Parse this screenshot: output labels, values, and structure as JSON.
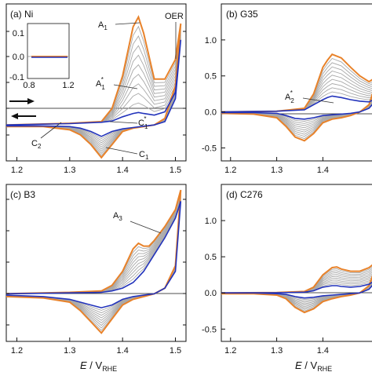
{
  "colors": {
    "first_cycle": "#e8822a",
    "intermediate": "#a8a8a8",
    "last_cycle": "#2233bb",
    "axis": "#111111"
  },
  "chart_data": [
    {
      "type": "line",
      "panel": "a",
      "title": "(a) Ni",
      "xlim": [
        1.18,
        1.52
      ],
      "ylim": [
        -0.11,
        0.37
      ],
      "xticks": [
        "1.2",
        "1.3",
        "1.4",
        "1.5"
      ],
      "yticks": [],
      "annotations": [
        "A1",
        "A1*",
        "OER",
        "C1*",
        "C1",
        "C2"
      ],
      "first": {
        "x": [
          1.18,
          1.3,
          1.36,
          1.38,
          1.4,
          1.42,
          1.43,
          1.44,
          1.46,
          1.48,
          1.5,
          1.51,
          1.5,
          1.48,
          1.46,
          1.44,
          1.42,
          1.4,
          1.38,
          1.36,
          1.34,
          1.32,
          1.3,
          1.25,
          1.18
        ],
        "y": [
          0.0,
          0.005,
          0.01,
          0.05,
          0.15,
          0.3,
          0.33,
          0.28,
          0.14,
          0.14,
          0.2,
          0.31,
          0.12,
          0.02,
          0.0,
          -0.005,
          -0.01,
          -0.02,
          -0.06,
          -0.1,
          -0.06,
          -0.03,
          -0.015,
          -0.005,
          -0.005
        ]
      },
      "last": {
        "x": [
          1.18,
          1.3,
          1.36,
          1.38,
          1.4,
          1.42,
          1.43,
          1.44,
          1.46,
          1.48,
          1.5,
          1.51,
          1.5,
          1.48,
          1.46,
          1.44,
          1.42,
          1.4,
          1.38,
          1.36,
          1.34,
          1.32,
          1.3,
          1.25,
          1.18
        ],
        "y": [
          0.0,
          0.004,
          0.008,
          0.012,
          0.025,
          0.035,
          0.038,
          0.035,
          0.03,
          0.04,
          0.1,
          0.26,
          0.08,
          0.01,
          0.0,
          -0.004,
          -0.008,
          -0.012,
          -0.02,
          -0.035,
          -0.02,
          -0.01,
          -0.005,
          -0.003,
          -0.003
        ]
      },
      "n_intermediate": 9,
      "inset": {
        "xlim": [
          0.8,
          1.2
        ],
        "ylim": [
          -0.1,
          0.1
        ],
        "xticks": [
          "0.8",
          "1.2"
        ],
        "yticks": [
          "0.1",
          "0.0",
          "-0.1"
        ]
      }
    },
    {
      "type": "line",
      "panel": "b",
      "title": "(b) G35",
      "xlim": [
        1.18,
        1.52
      ],
      "ylim": [
        -0.68,
        1.5
      ],
      "xticks": [
        "1.2",
        "1.3",
        "1.4"
      ],
      "yticks": [
        "1.0",
        "0.5",
        "0.0",
        "-0.5"
      ],
      "annotations": [
        "A2*"
      ],
      "first": {
        "x": [
          1.18,
          1.3,
          1.36,
          1.38,
          1.4,
          1.41,
          1.42,
          1.44,
          1.46,
          1.48,
          1.5,
          1.52,
          1.5,
          1.48,
          1.46,
          1.44,
          1.42,
          1.4,
          1.38,
          1.36,
          1.34,
          1.32,
          1.3,
          1.25,
          1.18
        ],
        "y": [
          0.0,
          0.01,
          0.05,
          0.25,
          0.62,
          0.72,
          0.8,
          0.75,
          0.62,
          0.5,
          0.42,
          0.5,
          0.1,
          0.0,
          -0.05,
          -0.08,
          -0.1,
          -0.15,
          -0.3,
          -0.4,
          -0.35,
          -0.2,
          -0.08,
          -0.03,
          -0.02
        ]
      },
      "last": {
        "x": [
          1.18,
          1.3,
          1.36,
          1.38,
          1.4,
          1.41,
          1.42,
          1.44,
          1.46,
          1.48,
          1.5,
          1.52,
          1.5,
          1.48,
          1.46,
          1.44,
          1.42,
          1.4,
          1.38,
          1.36,
          1.34,
          1.32,
          1.3,
          1.25,
          1.18
        ],
        "y": [
          0.0,
          0.01,
          0.03,
          0.1,
          0.17,
          0.2,
          0.22,
          0.2,
          0.17,
          0.15,
          0.14,
          0.2,
          0.05,
          0.0,
          -0.02,
          -0.03,
          -0.04,
          -0.05,
          -0.08,
          -0.1,
          -0.09,
          -0.05,
          -0.02,
          -0.01,
          -0.01
        ]
      },
      "n_intermediate": 9
    },
    {
      "type": "line",
      "panel": "c",
      "title": "(c) B3",
      "xlim": [
        1.18,
        1.52
      ],
      "ylim": [
        -0.17,
        0.39
      ],
      "xticks": [
        "1.2",
        "1.3",
        "1.4",
        "1.5"
      ],
      "yticks": [],
      "annotations": [
        "A3"
      ],
      "first": {
        "x": [
          1.18,
          1.3,
          1.36,
          1.38,
          1.4,
          1.42,
          1.43,
          1.44,
          1.45,
          1.46,
          1.48,
          1.5,
          1.51,
          1.5,
          1.48,
          1.46,
          1.44,
          1.42,
          1.4,
          1.38,
          1.36,
          1.34,
          1.32,
          1.3,
          1.25,
          1.18
        ],
        "y": [
          0.0,
          0.005,
          0.01,
          0.03,
          0.08,
          0.16,
          0.18,
          0.17,
          0.17,
          0.19,
          0.24,
          0.3,
          0.37,
          0.1,
          0.02,
          0.0,
          -0.01,
          -0.02,
          -0.04,
          -0.09,
          -0.14,
          -0.1,
          -0.06,
          -0.03,
          -0.015,
          -0.01
        ]
      },
      "last": {
        "x": [
          1.18,
          1.3,
          1.36,
          1.38,
          1.4,
          1.42,
          1.43,
          1.44,
          1.45,
          1.46,
          1.48,
          1.5,
          1.51,
          1.5,
          1.48,
          1.46,
          1.44,
          1.42,
          1.4,
          1.38,
          1.36,
          1.34,
          1.32,
          1.3,
          1.25,
          1.18
        ],
        "y": [
          0.0,
          0.003,
          0.005,
          0.01,
          0.02,
          0.04,
          0.06,
          0.08,
          0.11,
          0.14,
          0.2,
          0.27,
          0.33,
          0.08,
          0.02,
          0.0,
          -0.005,
          -0.01,
          -0.02,
          -0.04,
          -0.05,
          -0.04,
          -0.03,
          -0.02,
          -0.01,
          -0.005
        ]
      },
      "n_intermediate": 9
    },
    {
      "type": "line",
      "panel": "d",
      "title": "(d) C276",
      "xlim": [
        1.18,
        1.52
      ],
      "ylim": [
        -0.67,
        1.5
      ],
      "xticks": [
        "1.2",
        "1.3",
        "1.4"
      ],
      "yticks": [
        "1.0",
        "0.5",
        "0.0",
        "-0.5"
      ],
      "annotations": [],
      "first": {
        "x": [
          1.18,
          1.3,
          1.36,
          1.38,
          1.4,
          1.42,
          1.43,
          1.44,
          1.46,
          1.48,
          1.5,
          1.52,
          1.5,
          1.48,
          1.46,
          1.44,
          1.42,
          1.4,
          1.38,
          1.36,
          1.34,
          1.32,
          1.3,
          1.25,
          1.18
        ],
        "y": [
          0.0,
          0.005,
          0.02,
          0.08,
          0.25,
          0.35,
          0.36,
          0.33,
          0.3,
          0.3,
          0.35,
          0.45,
          0.1,
          0.0,
          -0.03,
          -0.05,
          -0.08,
          -0.12,
          -0.22,
          -0.27,
          -0.2,
          -0.08,
          -0.03,
          -0.01,
          -0.01
        ]
      },
      "last": {
        "x": [
          1.18,
          1.3,
          1.36,
          1.38,
          1.4,
          1.42,
          1.43,
          1.44,
          1.46,
          1.48,
          1.5,
          1.52,
          1.5,
          1.48,
          1.46,
          1.44,
          1.42,
          1.4,
          1.38,
          1.36,
          1.34,
          1.32,
          1.3,
          1.25,
          1.18
        ],
        "y": [
          0.0,
          0.003,
          0.01,
          0.03,
          0.08,
          0.1,
          0.1,
          0.09,
          0.08,
          0.09,
          0.12,
          0.2,
          0.05,
          0.0,
          -0.01,
          -0.02,
          -0.03,
          -0.04,
          -0.06,
          -0.07,
          -0.05,
          -0.02,
          -0.01,
          0.0,
          0.0
        ]
      },
      "n_intermediate": 9
    }
  ],
  "labels": {
    "a_title": "(a) Ni",
    "b_title": "(b) G35",
    "c_title": "(c) B3",
    "d_title": "(d) C276",
    "A1": "A",
    "A1_sub": "1",
    "A1s": "A",
    "A1s_sub": "1",
    "A1s_sup": "*",
    "OER": "OER",
    "C1s": "C",
    "C1s_sub": "1",
    "C1s_sup": "*",
    "C1": "C",
    "C1_sub": "1",
    "C2": "C",
    "C2_sub": "2",
    "A2s": "A",
    "A2s_sub": "2",
    "A2s_sup": "*",
    "A3": "A",
    "A3_sub": "3",
    "xlabel_E": "E",
    "xlabel_slash": " / V",
    "xlabel_sub": "RHE",
    "inset_x0": "0.8",
    "inset_x1": "1.2",
    "inset_y0": "0.1",
    "inset_y1": "0.0",
    "inset_y2": "-0.1"
  }
}
